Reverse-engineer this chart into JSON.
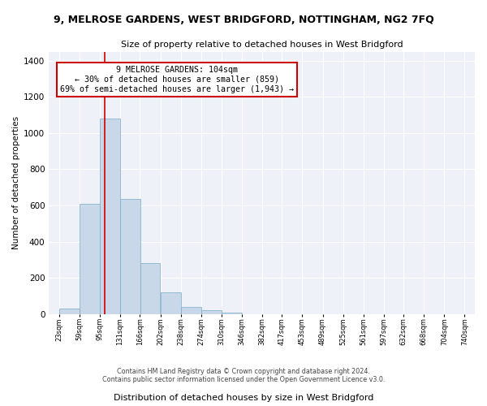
{
  "title": "9, MELROSE GARDENS, WEST BRIDGFORD, NOTTINGHAM, NG2 7FQ",
  "subtitle": "Size of property relative to detached houses in West Bridgford",
  "xlabel": "Distribution of detached houses by size in West Bridgford",
  "ylabel": "Number of detached properties",
  "bar_color": "#c8d8e8",
  "bar_edge_color": "#7aaac8",
  "background_color": "#eef2f8",
  "grid_color": "#ffffff",
  "annotation_box_color": "#ffffff",
  "annotation_box_edge": "#cc0000",
  "vline_color": "#cc0000",
  "footer_line1": "Contains HM Land Registry data © Crown copyright and database right 2024.",
  "footer_line2": "Contains public sector information licensed under the Open Government Licence v3.0.",
  "annotation_text": "9 MELROSE GARDENS: 104sqm\n← 30% of detached houses are smaller (859)\n69% of semi-detached houses are larger (1,943) →",
  "property_size": 104,
  "bin_edges": [
    23,
    59,
    95,
    131,
    166,
    202,
    238,
    274,
    310,
    346,
    382,
    417,
    453,
    489,
    525,
    561,
    597,
    632,
    668,
    704,
    740
  ],
  "bin_heights": [
    30,
    610,
    1080,
    635,
    280,
    120,
    40,
    20,
    10,
    0,
    0,
    0,
    0,
    0,
    0,
    0,
    0,
    0,
    0,
    0
  ],
  "tick_labels": [
    "23sqm",
    "59sqm",
    "95sqm",
    "131sqm",
    "166sqm",
    "202sqm",
    "238sqm",
    "274sqm",
    "310sqm",
    "346sqm",
    "382sqm",
    "417sqm",
    "453sqm",
    "489sqm",
    "525sqm",
    "561sqm",
    "597sqm",
    "632sqm",
    "668sqm",
    "704sqm",
    "740sqm"
  ],
  "ylim": [
    0,
    1450
  ],
  "yticks": [
    0,
    200,
    400,
    600,
    800,
    1000,
    1200,
    1400
  ]
}
